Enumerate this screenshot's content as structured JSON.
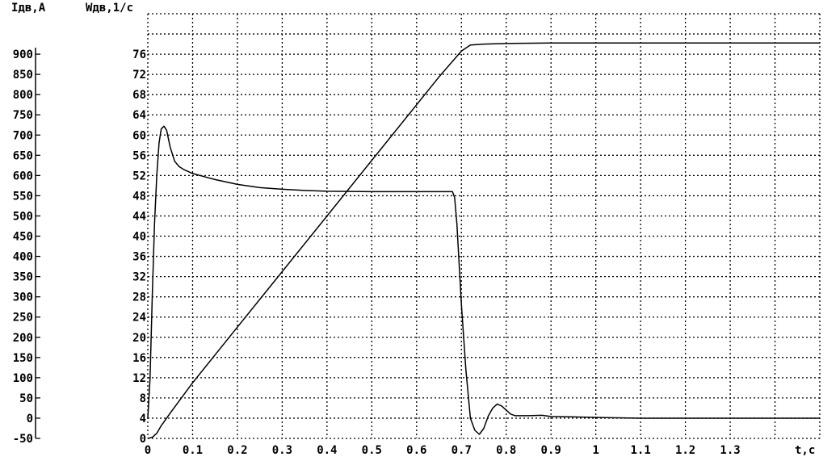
{
  "chart_data": {
    "type": "line",
    "title": "",
    "xlabel": "t,c",
    "ylabel_left": "Iдв,A",
    "ylabel_right": "Wдв,1/c",
    "xlim": [
      0,
      1.5
    ],
    "ylim_current": [
      -50,
      1000
    ],
    "ylim_speed": [
      0,
      84
    ],
    "grid": true,
    "x_ticks": [
      "0",
      "0.1",
      "0.2",
      "0.3",
      "0.4",
      "0.5",
      "0.6",
      "0.7",
      "0.8",
      "0.9",
      "1",
      "1.1",
      "1.2",
      "1.3"
    ],
    "x_tick_values": [
      0,
      0.1,
      0.2,
      0.3,
      0.4,
      0.5,
      0.6,
      0.7,
      0.8,
      0.9,
      1,
      1.1,
      1.2,
      1.3
    ],
    "current_ticks": [
      900,
      850,
      800,
      750,
      700,
      650,
      600,
      550,
      500,
      450,
      400,
      350,
      300,
      250,
      200,
      150,
      100,
      50,
      0,
      -50
    ],
    "speed_ticks": [
      76,
      72,
      68,
      64,
      60,
      56,
      52,
      48,
      44,
      40,
      36,
      32,
      28,
      24,
      20,
      16,
      12,
      8,
      4,
      0
    ],
    "series": [
      {
        "axis": "current",
        "color": "#000000",
        "x": [
          0,
          0.005,
          0.01,
          0.015,
          0.02,
          0.025,
          0.03,
          0.036,
          0.042,
          0.05,
          0.06,
          0.07,
          0.08,
          0.1,
          0.15,
          0.2,
          0.25,
          0.3,
          0.35,
          0.4,
          0.5,
          0.6,
          0.68,
          0.685,
          0.69,
          0.695,
          0.7,
          0.71,
          0.72,
          0.73,
          0.74,
          0.75,
          0.76,
          0.77,
          0.78,
          0.79,
          0.8,
          0.81,
          0.82,
          0.85,
          0.88,
          0.9,
          0.95,
          1.0,
          1.05,
          1.1,
          1.5
        ],
        "y": [
          0,
          100,
          300,
          480,
          600,
          680,
          715,
          722,
          712,
          670,
          635,
          622,
          615,
          605,
          590,
          578,
          570,
          566,
          563,
          561,
          560,
          560,
          560,
          545,
          480,
          380,
          280,
          120,
          0,
          -30,
          -40,
          -25,
          5,
          25,
          35,
          30,
          20,
          10,
          6,
          6,
          7,
          4,
          3,
          2,
          1,
          0,
          0
        ]
      },
      {
        "axis": "speed",
        "color": "#000000",
        "x": [
          0,
          0.01,
          0.02,
          0.03,
          0.05,
          0.1,
          0.2,
          0.3,
          0.4,
          0.5,
          0.6,
          0.65,
          0.7,
          0.72,
          0.75,
          0.8,
          0.9,
          1.5
        ],
        "y": [
          0,
          0.2,
          1,
          2.5,
          5,
          11,
          22,
          33,
          44,
          55,
          66,
          71.5,
          76.6,
          77.8,
          78,
          78.1,
          78.2,
          78.2
        ]
      }
    ]
  }
}
